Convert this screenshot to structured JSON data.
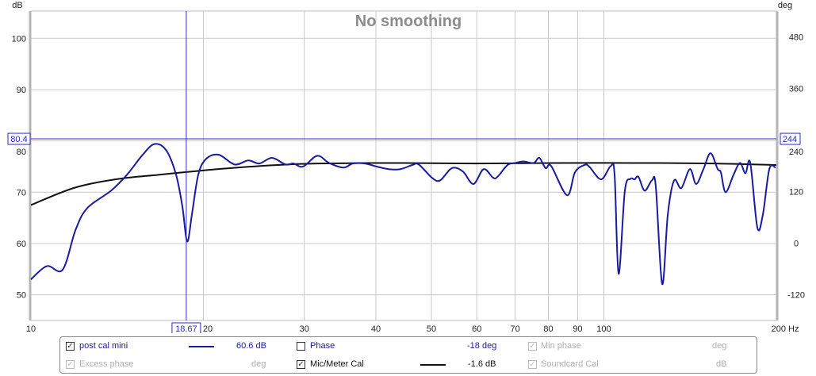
{
  "chart_data": {
    "type": "line",
    "title": "No smoothing",
    "xlabel": "Hz",
    "ylabel": "dB",
    "y2label": "deg",
    "xscale": "log",
    "xlim": [
      10,
      200
    ],
    "ylim": [
      45,
      105.3
    ],
    "y2lim": [
      -180,
      540
    ],
    "grid": true,
    "x_ticks": [
      10,
      20,
      30,
      40,
      50,
      60,
      70,
      80,
      90,
      100,
      200
    ],
    "y_ticks": [
      50,
      60,
      70,
      80,
      90,
      100
    ],
    "y2_ticks": [
      -120,
      0,
      120,
      240,
      360,
      480
    ],
    "cursor": {
      "x_label": "18.67",
      "x": 18.67,
      "y_label": "80.4",
      "y": 80.4,
      "y2_label": "244"
    },
    "series": [
      {
        "name": "post cal mini",
        "color": "#1a1aa0",
        "x": [
          10,
          10.66,
          11.36,
          11.96,
          12.54,
          13.8,
          14.71,
          15.67,
          16.44,
          17.24,
          17.92,
          18.38,
          18.74,
          19.1,
          19.59,
          20.22,
          21.28,
          22.68,
          23.95,
          25.04,
          26.35,
          27.82,
          28.72,
          29.84,
          31.6,
          33.14,
          35.1,
          36.47,
          38.25,
          40.13,
          42.1,
          44.16,
          46.31,
          47.52,
          50.14,
          51.78,
          54.31,
          56.79,
          59.19,
          61.69,
          64.1,
          65.34,
          67.88,
          70.09,
          72.36,
          75.43,
          77.14,
          79.13,
          80.92,
          86.24,
          89.04,
          92.5,
          94.28,
          98.9,
          102.8,
          104.4,
          106.1,
          108.8,
          111.3,
          113.1,
          114.9,
          117.8,
          121.3,
          123.2,
          126.4,
          129.3,
          132.6,
          136.5,
          141.3,
          144.9,
          149.2,
          153.5,
          158,
          160,
          163.1,
          168.4,
          172.8,
          176.6,
          180.1,
          185.3,
          189.5,
          194.4,
          199.4
        ],
        "y": [
          53.0,
          55.6,
          54.9,
          62.6,
          66.9,
          70.3,
          73.4,
          77.3,
          79.4,
          78.1,
          73.4,
          67.2,
          60.4,
          65.7,
          73.4,
          76.5,
          77.3,
          75.4,
          76.2,
          75.6,
          76.7,
          75.4,
          75.6,
          75.0,
          77.1,
          75.7,
          74.8,
          75.6,
          75.6,
          75.0,
          74.5,
          74.5,
          75.3,
          75.4,
          72.8,
          72.3,
          74.7,
          74.0,
          71.6,
          74.5,
          72.8,
          73.1,
          75.3,
          75.7,
          76.0,
          75.7,
          76.7,
          74.7,
          75.1,
          69.4,
          73.9,
          75.3,
          75.0,
          72.5,
          75.1,
          73.4,
          54.1,
          70.3,
          72.6,
          72.5,
          73.0,
          70.3,
          72.3,
          71.1,
          52.1,
          65.7,
          72.3,
          70.8,
          74.5,
          71.6,
          74.5,
          77.6,
          74.5,
          73.9,
          70.0,
          73.4,
          75.7,
          73.7,
          75.7,
          63.1,
          65.7,
          74.5,
          74.8
        ]
      },
      {
        "name": "Mic/Meter Cal",
        "color": "#111111",
        "x": [
          10,
          11.94,
          14.24,
          16.7,
          20.22,
          22.95,
          26.9,
          31.6,
          43.5,
          59.8,
          82,
          113.1,
          155.6,
          200
        ],
        "y": [
          67.5,
          70.9,
          72.6,
          73.4,
          74.3,
          74.8,
          75.3,
          75.6,
          75.7,
          75.6,
          75.7,
          75.7,
          75.6,
          75.3
        ]
      }
    ]
  },
  "legend": {
    "row1": [
      {
        "label": "post cal mini",
        "checked": true,
        "enabled": true,
        "value": "60.6 dB"
      },
      {
        "label": "Phase",
        "checked": false,
        "enabled": true,
        "value": "-18 deg"
      },
      {
        "label": "Min phase",
        "checked": true,
        "enabled": false,
        "value": "deg"
      }
    ],
    "row2": [
      {
        "label": "Excess phase",
        "checked": true,
        "enabled": false,
        "value": "deg"
      },
      {
        "label": "Mic/Meter Cal",
        "checked": true,
        "enabled": true,
        "value": "-1.6 dB"
      },
      {
        "label": "Soundcard Cal",
        "checked": true,
        "enabled": false,
        "value": "dB"
      }
    ],
    "check_glyph": "✓"
  }
}
